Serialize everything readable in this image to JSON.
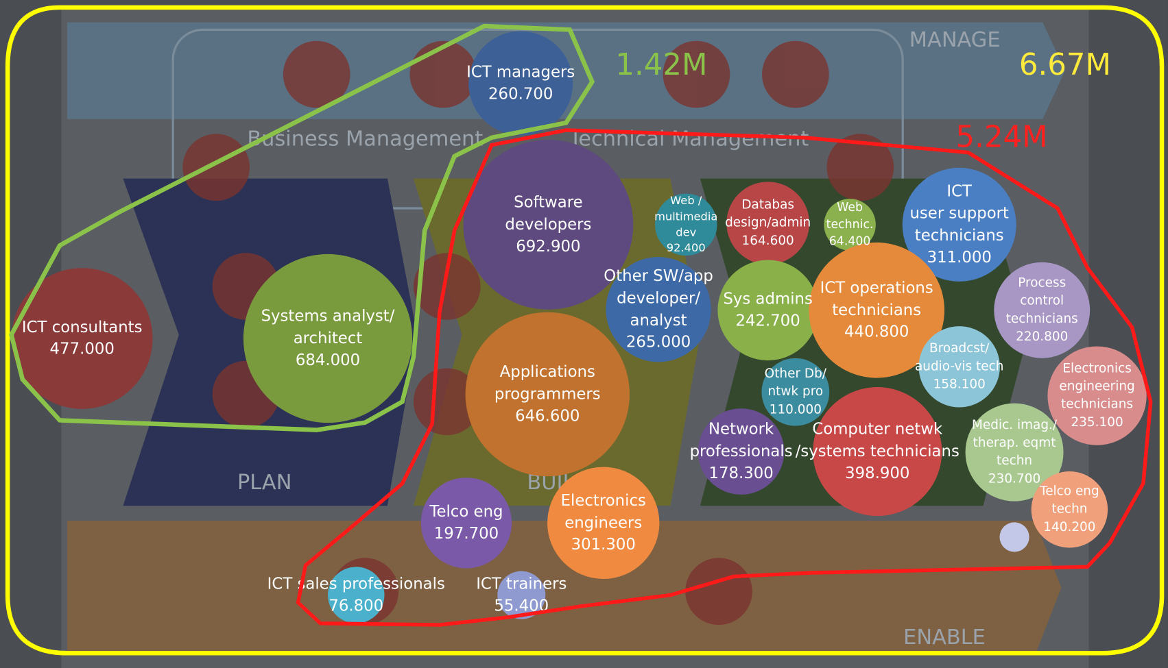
{
  "chart_data": {
    "type": "bubble",
    "categories": [
      "ICT managers",
      "ICT consultants",
      "Systems analyst/\narchitect",
      "Software\ndevelopers",
      "Applications\nprogrammers",
      "Other SW/app\ndeveloper/\nanalyst",
      "Web /\nmultimedia\ndev",
      "Databas\ndesign/admin",
      "Web\ntechnic.",
      "ICT\nuser support\ntechnicians",
      "Sys admins",
      "ICT operations\ntechnicians",
      "Process\ncontrol\ntechnicians",
      "Broadcst/\naudio-vis tech",
      "Other Db/\nntwk pro",
      "Electronics\nengineering\ntechnicians",
      "Network\nprofessionals",
      "Computer netwk\n/systems technicians",
      "Medic. imag./\ntherap. eqmt\ntechn",
      "Telco eng\ntechn",
      "Telco eng",
      "Electronics\nengineers",
      "ICT sales professionals",
      "ICT trainers",
      null
    ],
    "values": [
      260700,
      477000,
      684000,
      692900,
      646600,
      265000,
      92400,
      164600,
      64400,
      311000,
      242700,
      440800,
      220800,
      158100,
      110000,
      235100,
      178300,
      398900,
      230700,
      140200,
      197700,
      301300,
      76800,
      55400,
      21000
    ],
    "value_labels": [
      "260.700",
      "477.000",
      "684.000",
      "692.900",
      "646.600",
      "265.000",
      "92.400",
      "164.600",
      "64.400",
      "311.000",
      "242.700",
      "440.800",
      "220.800",
      "158.100",
      "110.000",
      "235.100",
      "178.300",
      "398.900",
      "230.700",
      "140.200",
      "197.700",
      "301.300",
      "76.800",
      "55.400",
      null
    ],
    "colors": [
      "#3d6096",
      "#8b3a3a",
      "#7a9a3e",
      "#5e4a7e",
      "#c0722e",
      "#3d6aa6",
      "#2f8a9a",
      "#b84646",
      "#8bb04e",
      "#4a7fc4",
      "#8ab04a",
      "#e58a3a",
      "#a896c4",
      "#8cc4d8",
      "#3c8ca0",
      "#d88c8c",
      "#6a4e92",
      "#c84848",
      "#a8c890",
      "#f0a07a",
      "#7a5aa8",
      "#f08a40",
      "#4ab0cc",
      "#8e9ad0",
      "#c4c8e8"
    ],
    "annotations": [
      "1.42M",
      "6.67M",
      "5.24M"
    ],
    "annotation_colors": [
      "#8bc34a",
      "#ffeb3b",
      "#ff2020"
    ],
    "background_labels": [
      "MANAGE",
      "Business Management",
      "Technical Management",
      "PLAN",
      "BUILD",
      "ENABLE"
    ]
  }
}
